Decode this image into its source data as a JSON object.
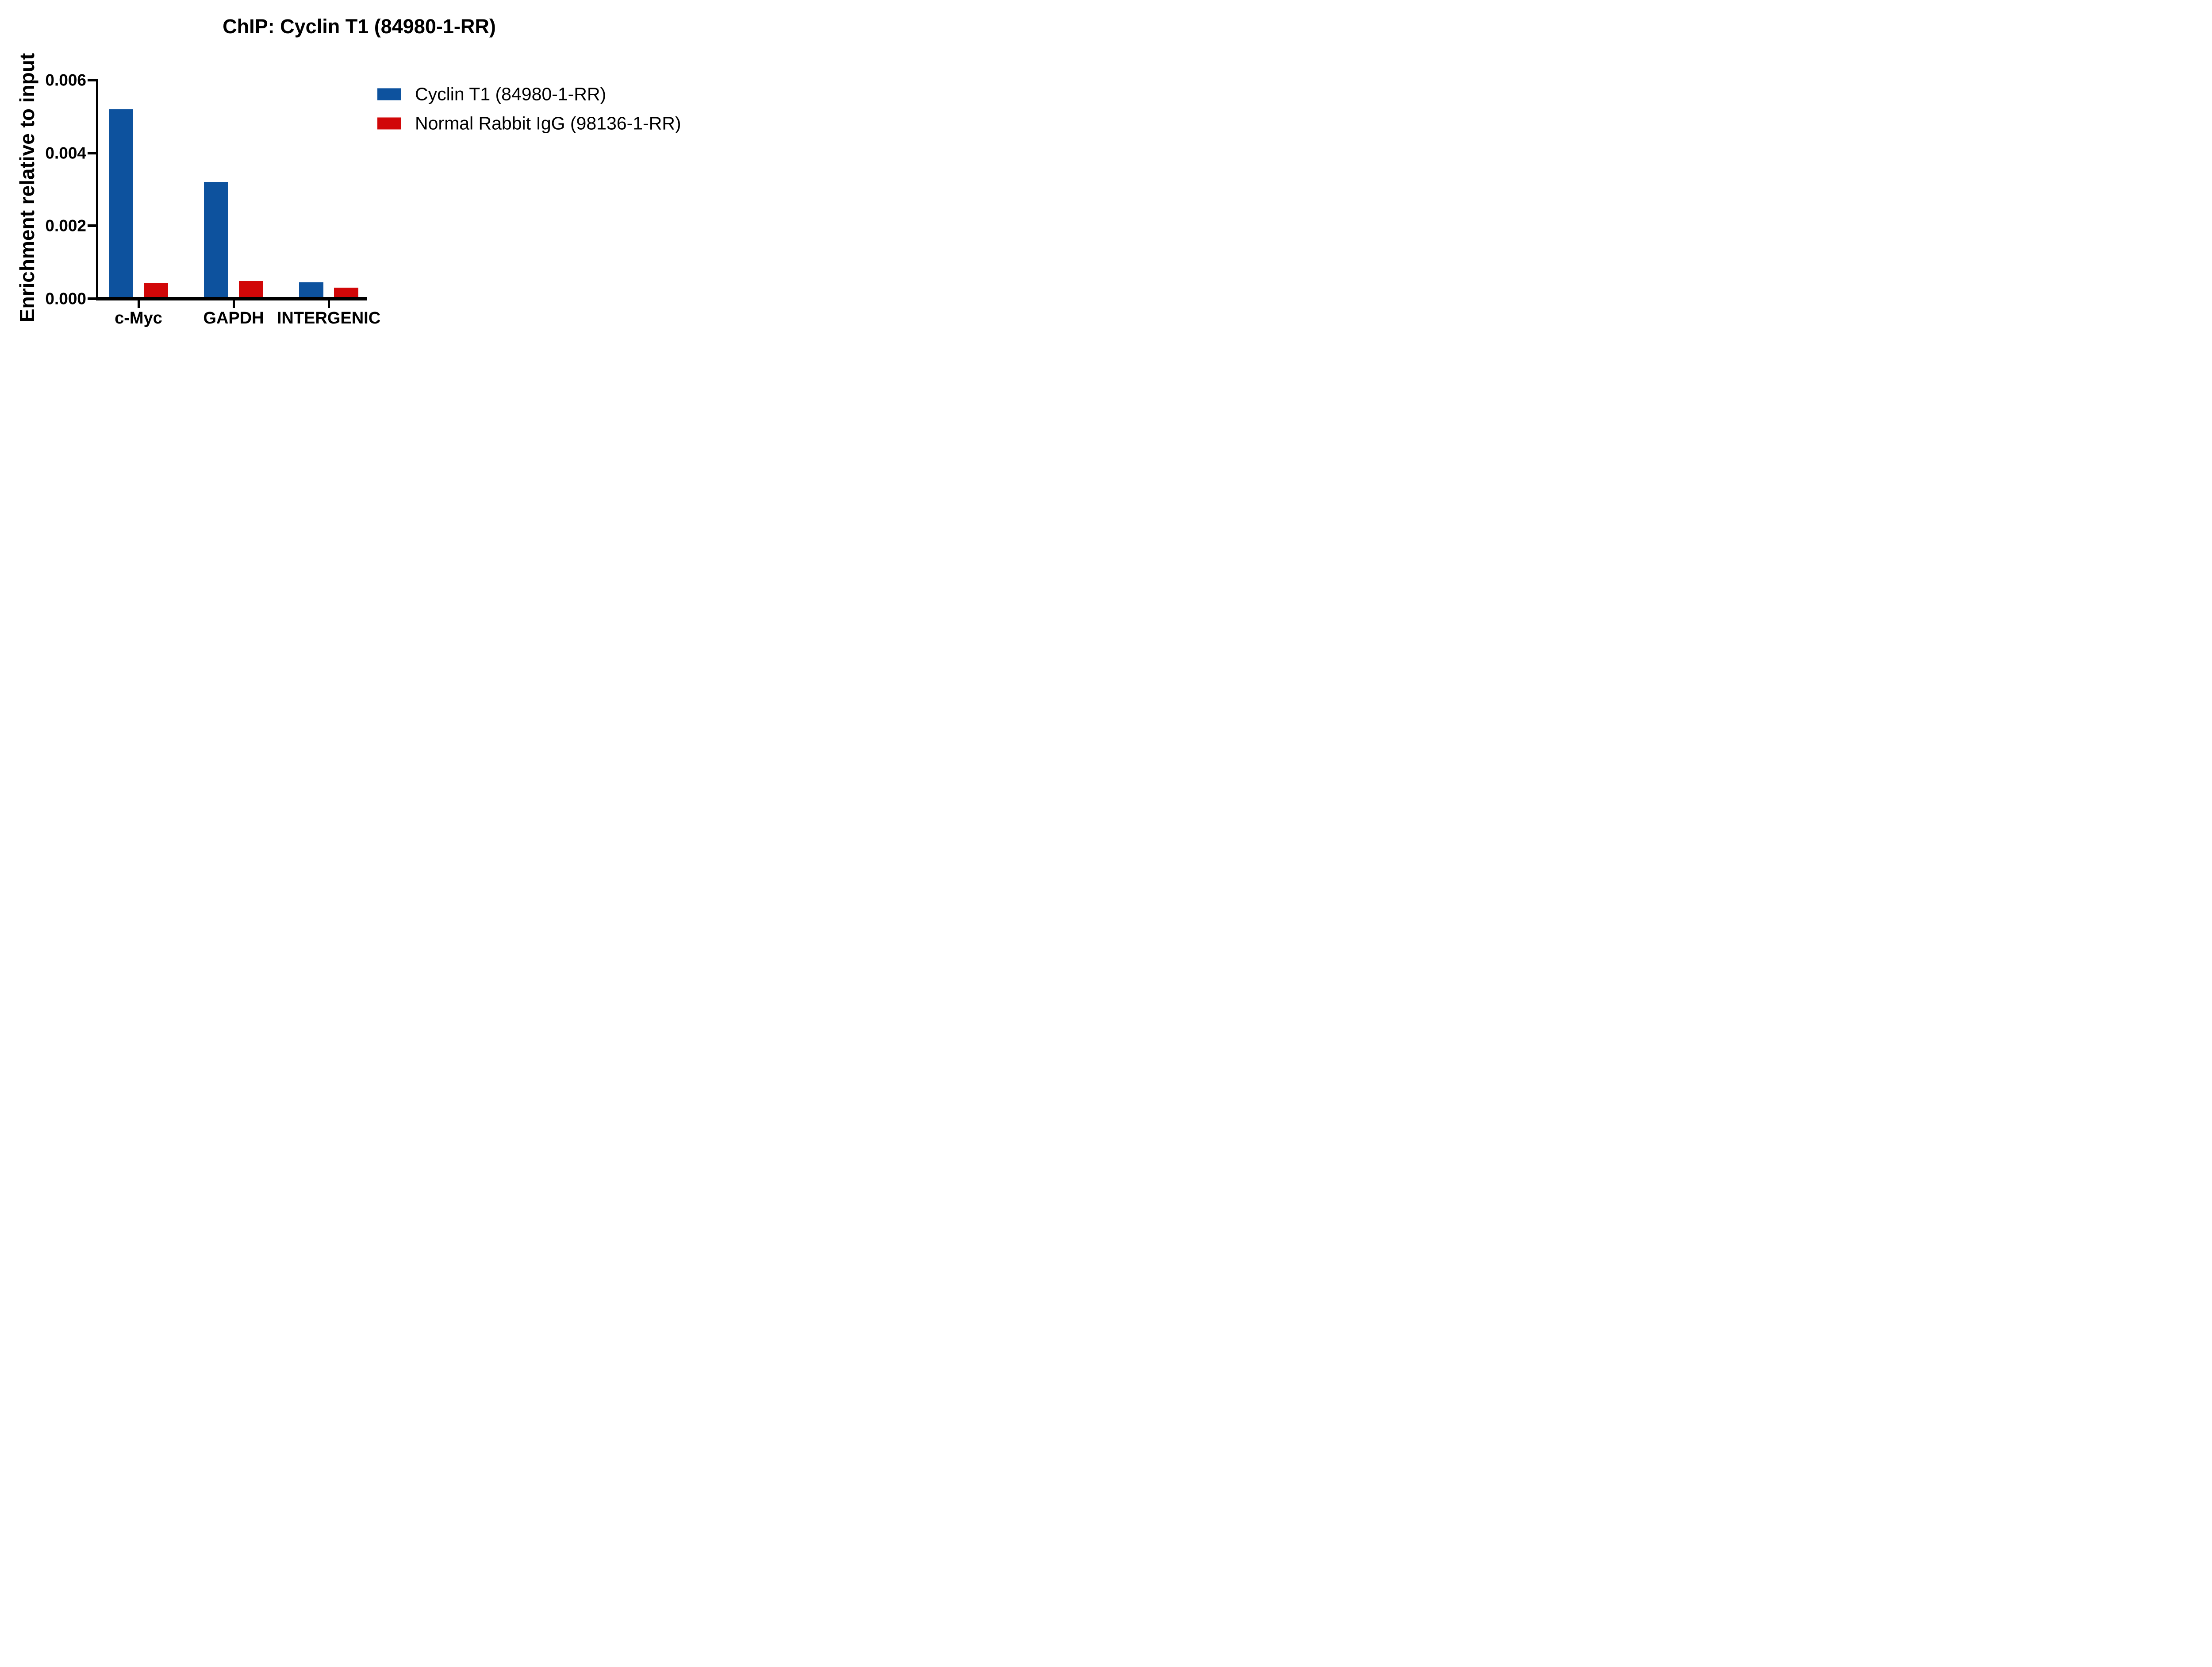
{
  "chart_data": {
    "type": "bar",
    "title": "ChIP: Cyclin T1 (84980-1-RR)",
    "ylabel": "Enrichment relative to input",
    "xlabel": "",
    "categories": [
      "c-Myc",
      "GAPDH",
      "INTERGENIC"
    ],
    "series": [
      {
        "name": "Cyclin T1 (84980-1-RR)",
        "color": "#0d529e",
        "values": [
          0.0052,
          0.0032,
          0.00045
        ]
      },
      {
        "name": "Normal Rabbit IgG (98136-1-RR)",
        "color": "#d10708",
        "values": [
          0.00042,
          0.00048,
          0.0003
        ]
      }
    ],
    "ylim": [
      0,
      0.006
    ],
    "yticks": [
      {
        "value": 0.0,
        "label": "0.000"
      },
      {
        "value": 0.002,
        "label": "0.002"
      },
      {
        "value": 0.004,
        "label": "0.004"
      },
      {
        "value": 0.006,
        "label": "0.006"
      }
    ],
    "grid": false,
    "legend_position": "right",
    "axis_color": "#000000",
    "text_color": "#000000",
    "background_color": "#ffffff"
  }
}
